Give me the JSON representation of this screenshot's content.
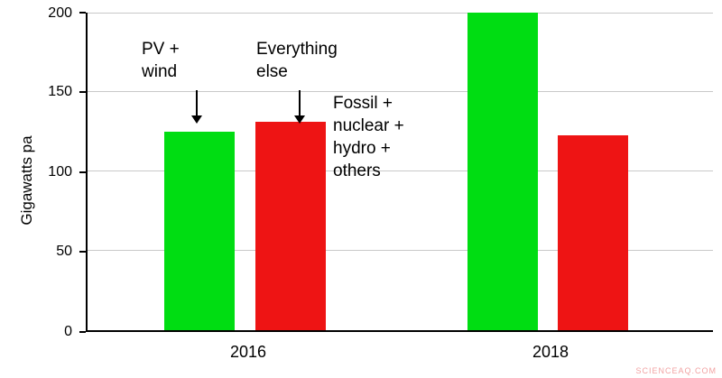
{
  "chart_data": {
    "type": "bar",
    "title": "",
    "ylabel": "Gigawatts pa",
    "xlabel": "",
    "ylim": [
      0,
      200
    ],
    "yticks": [
      0,
      50,
      100,
      150,
      200
    ],
    "grid": "horizontal",
    "legend_position": "none",
    "categories": [
      "2016",
      "2018"
    ],
    "series": [
      {
        "name": "PV + wind",
        "color": "#00dd12",
        "values": [
          125,
          200
        ]
      },
      {
        "name": "Everything else",
        "color": "#ee1414",
        "values": [
          131,
          123
        ]
      }
    ],
    "annotations": [
      {
        "text": "PV +\nwind"
      },
      {
        "text": "Everything\nelse"
      },
      {
        "text": "Fossil +\nnuclear +\nhydro +\nothers"
      }
    ]
  },
  "watermark": "SCIENCEAQ.COM"
}
